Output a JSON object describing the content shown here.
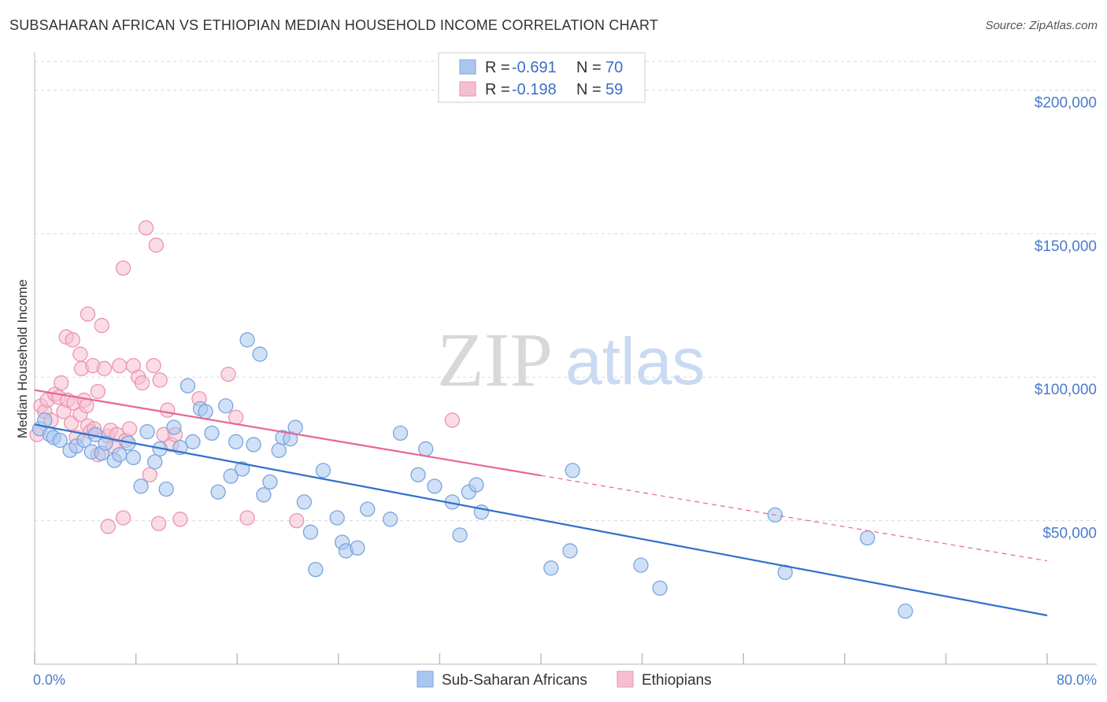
{
  "title": "SUBSAHARAN AFRICAN VS ETHIOPIAN MEDIAN HOUSEHOLD INCOME CORRELATION CHART",
  "source": "Source: ZipAtlas.com",
  "watermark": {
    "zip": "ZIP",
    "atlas": "atlas"
  },
  "colors": {
    "blue_fill": "#aac6ee",
    "blue_stroke": "#7aa5dd",
    "blue_line": "#2f6fcc",
    "pink_fill": "#f6bfd0",
    "pink_stroke": "#ec93b0",
    "pink_line": "#e8668f",
    "grid": "#d9d9d9",
    "axis_label": "#4a7cc9"
  },
  "legend": {
    "rows": [
      {
        "r_label": "R =",
        "r_value": "-0.691",
        "n_label": "N =",
        "n_value": "70"
      },
      {
        "r_label": "R =",
        "r_value": "-0.198",
        "n_label": "N =",
        "n_value": "59"
      }
    ]
  },
  "chart_data": {
    "type": "scatter",
    "title": "SUBSAHARAN AFRICAN VS ETHIOPIAN MEDIAN HOUSEHOLD INCOME CORRELATION CHART",
    "xlabel": "",
    "ylabel": "Median Household Income",
    "xlim": [
      0,
      80
    ],
    "ylim": [
      0,
      210000
    ],
    "x_tick_labels": [
      "0.0%",
      "80.0%"
    ],
    "y_ticks": [
      50000,
      100000,
      150000,
      200000
    ],
    "y_tick_labels": [
      "$50,000",
      "$100,000",
      "$150,000",
      "$200,000"
    ],
    "grid": true,
    "series": [
      {
        "name": "Sub-Saharan Africans",
        "r": -0.691,
        "n": 70,
        "trend": {
          "x0": 0,
          "y0": 83500,
          "x1": 80,
          "y1": 17000,
          "solid_to": 80
        },
        "points": [
          [
            0.4,
            82000
          ],
          [
            0.8,
            85000
          ],
          [
            1.2,
            80000
          ],
          [
            1.5,
            79000
          ],
          [
            2.0,
            78000
          ],
          [
            2.8,
            74500
          ],
          [
            3.3,
            76000
          ],
          [
            3.9,
            78000
          ],
          [
            4.5,
            74000
          ],
          [
            4.8,
            80000
          ],
          [
            5.3,
            73500
          ],
          [
            5.6,
            77000
          ],
          [
            6.3,
            71000
          ],
          [
            6.7,
            73000
          ],
          [
            7.4,
            77000
          ],
          [
            7.8,
            72000
          ],
          [
            8.4,
            62000
          ],
          [
            8.9,
            81000
          ],
          [
            9.5,
            70500
          ],
          [
            9.9,
            75000
          ],
          [
            10.4,
            61000
          ],
          [
            11.0,
            82500
          ],
          [
            11.5,
            75500
          ],
          [
            12.1,
            97000
          ],
          [
            12.5,
            77500
          ],
          [
            13.1,
            89000
          ],
          [
            13.5,
            88000
          ],
          [
            14.0,
            80500
          ],
          [
            14.5,
            60000
          ],
          [
            15.1,
            90000
          ],
          [
            15.5,
            65500
          ],
          [
            15.9,
            77500
          ],
          [
            16.4,
            68000
          ],
          [
            16.8,
            113000
          ],
          [
            17.3,
            76500
          ],
          [
            17.8,
            108000
          ],
          [
            18.1,
            59000
          ],
          [
            18.6,
            63500
          ],
          [
            19.3,
            74500
          ],
          [
            19.6,
            79000
          ],
          [
            20.2,
            78500
          ],
          [
            20.6,
            82500
          ],
          [
            21.3,
            56500
          ],
          [
            21.8,
            46000
          ],
          [
            22.2,
            33000
          ],
          [
            22.8,
            67500
          ],
          [
            23.9,
            51000
          ],
          [
            24.3,
            42500
          ],
          [
            24.6,
            39500
          ],
          [
            25.5,
            40500
          ],
          [
            26.3,
            54000
          ],
          [
            28.1,
            50500
          ],
          [
            28.9,
            80500
          ],
          [
            30.3,
            66000
          ],
          [
            30.9,
            75000
          ],
          [
            31.6,
            62000
          ],
          [
            33.0,
            56500
          ],
          [
            33.6,
            45000
          ],
          [
            34.3,
            60000
          ],
          [
            34.9,
            62500
          ],
          [
            35.3,
            53000
          ],
          [
            40.8,
            33500
          ],
          [
            42.3,
            39500
          ],
          [
            42.5,
            67500
          ],
          [
            47.9,
            34500
          ],
          [
            49.4,
            26500
          ],
          [
            58.5,
            52000
          ],
          [
            59.3,
            32000
          ],
          [
            65.8,
            44000
          ],
          [
            68.8,
            18500
          ]
        ]
      },
      {
        "name": "Ethiopians",
        "r": -0.198,
        "n": 59,
        "trend": {
          "x0": 0,
          "y0": 95500,
          "x1": 80,
          "y1": 36000,
          "solid_to": 40
        },
        "points": [
          [
            0.2,
            80000
          ],
          [
            0.5,
            90000
          ],
          [
            0.8,
            88000
          ],
          [
            1.0,
            92000
          ],
          [
            1.3,
            85000
          ],
          [
            1.6,
            94000
          ],
          [
            1.9,
            93000
          ],
          [
            2.1,
            98000
          ],
          [
            2.3,
            88000
          ],
          [
            2.6,
            92000
          ],
          [
            2.9,
            84000
          ],
          [
            3.1,
            91000
          ],
          [
            3.3,
            79000
          ],
          [
            3.6,
            87000
          ],
          [
            3.9,
            92000
          ],
          [
            4.2,
            83000
          ],
          [
            4.4,
            81000
          ],
          [
            4.7,
            82000
          ],
          [
            5.0,
            73000
          ],
          [
            2.5,
            114000
          ],
          [
            3.0,
            113000
          ],
          [
            3.6,
            108000
          ],
          [
            3.7,
            103000
          ],
          [
            4.1,
            90000
          ],
          [
            4.2,
            122000
          ],
          [
            4.6,
            104000
          ],
          [
            5.0,
            95000
          ],
          [
            5.3,
            118000
          ],
          [
            5.5,
            103000
          ],
          [
            5.8,
            79500
          ],
          [
            6.0,
            81500
          ],
          [
            6.2,
            76000
          ],
          [
            6.5,
            80000
          ],
          [
            6.7,
            104000
          ],
          [
            7.0,
            138000
          ],
          [
            7.2,
            78000
          ],
          [
            7.5,
            82000
          ],
          [
            7.8,
            104000
          ],
          [
            8.2,
            100000
          ],
          [
            8.5,
            98000
          ],
          [
            8.8,
            152000
          ],
          [
            9.1,
            66000
          ],
          [
            9.4,
            104000
          ],
          [
            9.6,
            146000
          ],
          [
            9.9,
            99000
          ],
          [
            10.2,
            80000
          ],
          [
            10.5,
            88500
          ],
          [
            10.8,
            76500
          ],
          [
            11.1,
            80000
          ],
          [
            5.8,
            48000
          ],
          [
            7.0,
            51000
          ],
          [
            9.8,
            49000
          ],
          [
            11.5,
            50500
          ],
          [
            13.0,
            92500
          ],
          [
            15.3,
            101000
          ],
          [
            15.9,
            86000
          ],
          [
            16.8,
            51000
          ],
          [
            20.7,
            50000
          ],
          [
            33.0,
            85000
          ]
        ]
      }
    ]
  },
  "bottom_legend": [
    {
      "label": "Sub-Saharan Africans"
    },
    {
      "label": "Ethiopians"
    }
  ]
}
